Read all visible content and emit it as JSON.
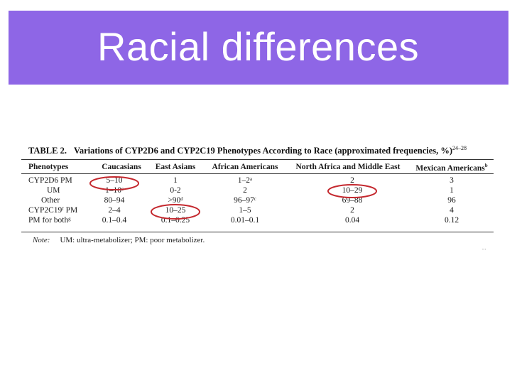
{
  "slide": {
    "title": "Racial differences",
    "accent_color": "#8e66e6",
    "highlight_color": "#c4282e"
  },
  "table": {
    "label": "TABLE 2.",
    "title": "Variations of CYP2D6 and CYP2C19 Phenotypes According to Race (approximated frequencies, %)",
    "title_sup": "24–28",
    "headers": [
      {
        "text": "Phenotypes",
        "sup": ""
      },
      {
        "text": "Caucasians",
        "sup": ""
      },
      {
        "text": "East Asians",
        "sup": ""
      },
      {
        "text": "African Americans",
        "sup": ""
      },
      {
        "text": "North Africa and Middle East",
        "sup": ""
      },
      {
        "text": "Mexican Americans",
        "sup": "b"
      }
    ],
    "rows": [
      [
        "CYP2D6 PM",
        "5–10",
        "1",
        "1–2ᵃ",
        "2",
        "3"
      ],
      [
        "UM",
        "1–10ᶜ",
        "0-2",
        "2",
        "10–29",
        "1"
      ],
      [
        "Other",
        "80–94",
        ">90ᵈ",
        "96–97ᶜ",
        "69–88",
        "96"
      ],
      [
        "CYP2C19ᶠ PM",
        "2–4",
        "10–25",
        "1–5",
        "2",
        "4"
      ],
      [
        "PM for bothᵍ",
        "0.1–0.4",
        "0.1–0.25",
        "0.01–0.1",
        "0.04",
        "0.12"
      ]
    ],
    "note_label": "Note:",
    "note_text": "UM: ultra-metabolizer; PM: poor metabolizer.",
    "page_mark": "..."
  }
}
